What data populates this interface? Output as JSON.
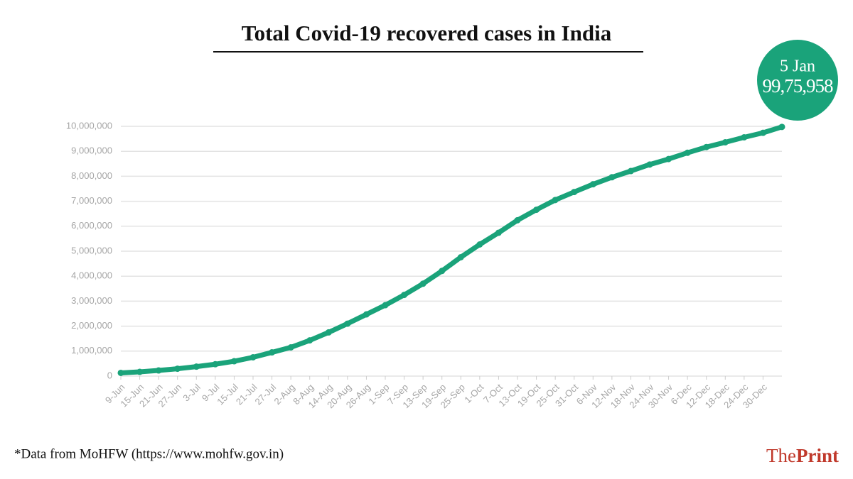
{
  "chart_data": {
    "type": "line",
    "title": "Total Covid-19 recovered cases in India",
    "categories": [
      "9-Jun",
      "15-Jun",
      "21-Jun",
      "27-Jun",
      "3-Jul",
      "9-Jul",
      "15-Jul",
      "21-Jul",
      "27-Jul",
      "2-Aug",
      "8-Aug",
      "14-Aug",
      "20-Aug",
      "26-Aug",
      "1-Sep",
      "7-Sep",
      "13-Sep",
      "19-Sep",
      "25-Sep",
      "1-Oct",
      "7-Oct",
      "13-Oct",
      "19-Oct",
      "25-Oct",
      "31-Oct",
      "6-Nov",
      "12-Nov",
      "18-Nov",
      "24-Nov",
      "30-Nov",
      "6-Dec",
      "12-Dec",
      "18-Dec",
      "24-Dec",
      "30-Dec",
      null
    ],
    "values": [
      129000,
      169000,
      227000,
      296000,
      379000,
      476000,
      595000,
      753000,
      950000,
      1150000,
      1430000,
      1750000,
      2100000,
      2470000,
      2840000,
      3250000,
      3700000,
      4210000,
      4760000,
      5270000,
      5740000,
      6240000,
      6660000,
      7050000,
      7370000,
      7680000,
      7960000,
      8210000,
      8470000,
      8690000,
      8940000,
      9170000,
      9360000,
      9560000,
      9740000,
      9975958
    ],
    "value_labels": [
      null,
      null,
      null,
      null,
      null,
      null,
      null,
      null,
      null,
      null,
      null,
      null,
      null,
      null,
      null,
      null,
      null,
      null,
      null,
      null,
      null,
      null,
      null,
      null,
      null,
      null,
      null,
      null,
      null,
      null,
      null,
      null,
      null,
      null,
      null,
      "99,75,958"
    ],
    "annotation": "5 Jan",
    "color": "#1aa37a",
    "ylim": [
      0,
      10000000
    ],
    "yticks": [
      0,
      {
        "value": 1000000,
        "label": "1,000,000"
      },
      {
        "value": 2000000,
        "label": "2,000,000"
      },
      {
        "value": 3000000,
        "label": "3,000,000"
      },
      {
        "value": 4000000,
        "label": "4,000,000"
      },
      {
        "value": 5000000,
        "label": "5,000,000"
      },
      {
        "value": 6000000,
        "label": "6,000,000"
      },
      {
        "value": 7000000,
        "label": "7,000,000"
      },
      {
        "value": 8000000,
        "label": "8,000,000"
      },
      {
        "value": 9000000,
        "label": "9,000,000"
      },
      {
        "value": 10000000,
        "label": "10,000,000"
      }
    ],
    "grid": true,
    "source": "*Data from MoHFW (https://www.mohfw.gov.in)",
    "logo": {
      "first": "The",
      "second": "Print"
    }
  }
}
